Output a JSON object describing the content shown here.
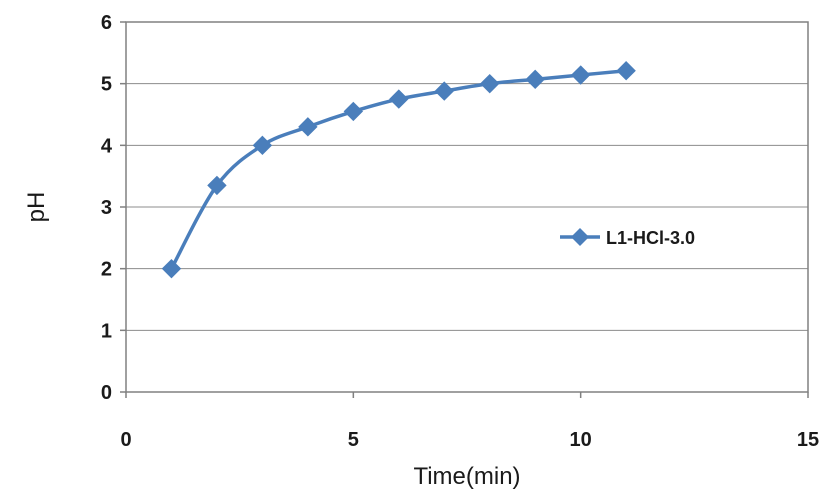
{
  "chart_data": {
    "type": "line",
    "title": "",
    "xlabel": "Time(min)",
    "ylabel": "pH",
    "xlim": [
      0,
      15
    ],
    "ylim": [
      0,
      6
    ],
    "xticks": [
      0,
      5,
      10,
      15
    ],
    "yticks": [
      0,
      1,
      2,
      3,
      4,
      5,
      6
    ],
    "grid": "horizontal",
    "legend_position": "right",
    "series": [
      {
        "name": "L1-HCl-3.0",
        "color": "#4a7ebb",
        "marker": "diamond",
        "x": [
          1,
          2,
          3,
          4,
          5,
          6,
          7,
          8,
          9,
          10,
          11
        ],
        "y": [
          2.0,
          3.35,
          4.0,
          4.3,
          4.55,
          4.75,
          4.88,
          5.0,
          5.07,
          5.14,
          5.21
        ]
      }
    ]
  }
}
